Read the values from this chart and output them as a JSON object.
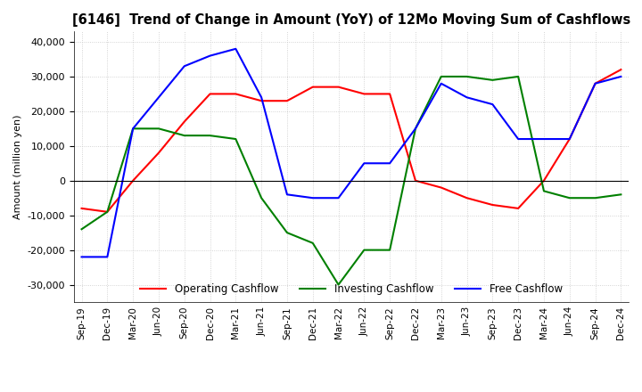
{
  "title": "[6146]  Trend of Change in Amount (YoY) of 12Mo Moving Sum of Cashflows",
  "ylabel": "Amount (million yen)",
  "x_labels": [
    "Sep-19",
    "Dec-19",
    "Mar-20",
    "Jun-20",
    "Sep-20",
    "Dec-20",
    "Mar-21",
    "Jun-21",
    "Sep-21",
    "Dec-21",
    "Mar-22",
    "Jun-22",
    "Sep-22",
    "Dec-22",
    "Mar-23",
    "Jun-23",
    "Sep-23",
    "Dec-23",
    "Mar-24",
    "Jun-24",
    "Sep-24",
    "Dec-24"
  ],
  "operating": [
    -8000,
    -9000,
    0,
    8000,
    17000,
    25000,
    25000,
    23000,
    23000,
    27000,
    27000,
    25000,
    25000,
    0,
    -2000,
    -5000,
    -7000,
    -8000,
    0,
    12000,
    28000,
    32000
  ],
  "investing": [
    -14000,
    -9000,
    15000,
    15000,
    13000,
    13000,
    12000,
    -5000,
    -15000,
    -18000,
    -30000,
    -20000,
    -20000,
    15000,
    30000,
    30000,
    29000,
    30000,
    -3000,
    -5000,
    -5000,
    -4000
  ],
  "free": [
    -22000,
    -22000,
    15000,
    24000,
    33000,
    36000,
    38000,
    24000,
    -4000,
    -5000,
    -5000,
    5000,
    5000,
    15000,
    28000,
    24000,
    22000,
    12000,
    12000,
    12000,
    28000,
    30000
  ],
  "ylim": [
    -35000,
    43000
  ],
  "yticks": [
    -30000,
    -20000,
    -10000,
    0,
    10000,
    20000,
    30000,
    40000
  ],
  "colors": {
    "operating": "#FF0000",
    "investing": "#008000",
    "free": "#0000FF"
  },
  "legend_labels": [
    "Operating Cashflow",
    "Investing Cashflow",
    "Free Cashflow"
  ],
  "grid_color": "#c8c8c8",
  "grid_style": "dotted"
}
